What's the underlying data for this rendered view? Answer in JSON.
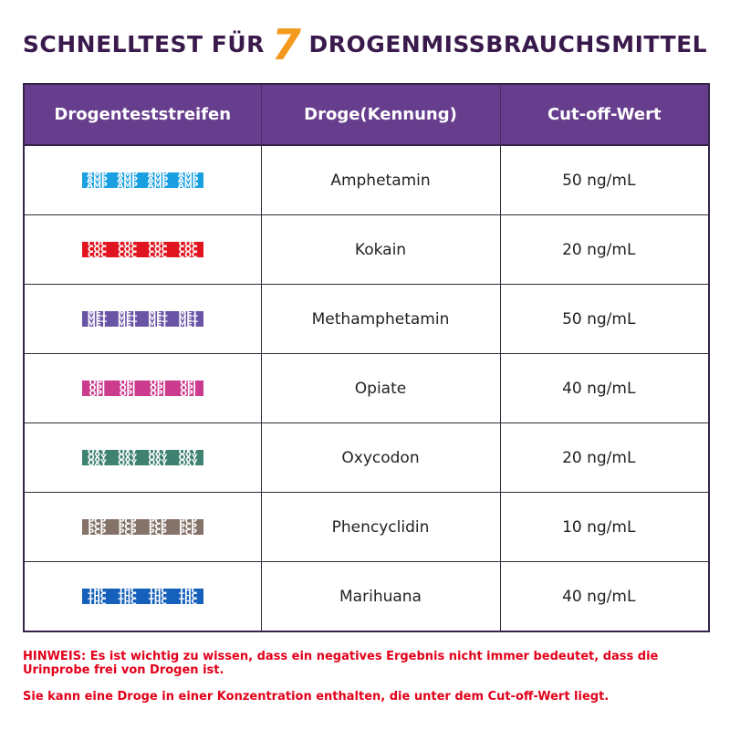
{
  "title": {
    "prefix": "SCHNELLTEST FÜR",
    "number": "7",
    "suffix": "DROGENMISSBRAUCHSMITTEL"
  },
  "table": {
    "headers": [
      "Drogenteststreifen",
      "Droge(Kennung)",
      "Cut-off-Wert"
    ],
    "rows": [
      {
        "code": "AMP",
        "color": "#1aa0e0",
        "drug": "Amphetamin",
        "cutoff": "50 ng/mL"
      },
      {
        "code": "COC",
        "color": "#e0151f",
        "drug": "Kokain",
        "cutoff": "20 ng/mL"
      },
      {
        "code": "MET",
        "color": "#6a54a6",
        "drug": "Methamphetamin",
        "cutoff": "50 ng/mL"
      },
      {
        "code": "OPI",
        "color": "#cc3c8e",
        "drug": "Opiate",
        "cutoff": "40 ng/mL"
      },
      {
        "code": "OXY",
        "color": "#3f8272",
        "drug": "Oxycodon",
        "cutoff": "20 ng/mL"
      },
      {
        "code": "PCP",
        "color": "#857268",
        "drug": "Phencyclidin",
        "cutoff": "10 ng/mL"
      },
      {
        "code": "THC",
        "color": "#1560ba",
        "drug": "Marihuana",
        "cutoff": "40 ng/mL"
      }
    ]
  },
  "note": {
    "line1": "HINWEIS: Es ist wichtig zu wissen, dass ein negatives Ergebnis nicht immer bedeutet, dass die Urinprobe frei von Drogen ist.",
    "line2": "Sie kann eine Droge in einer Konzentration enthalten, die unter dem Cut-off-Wert liegt."
  }
}
